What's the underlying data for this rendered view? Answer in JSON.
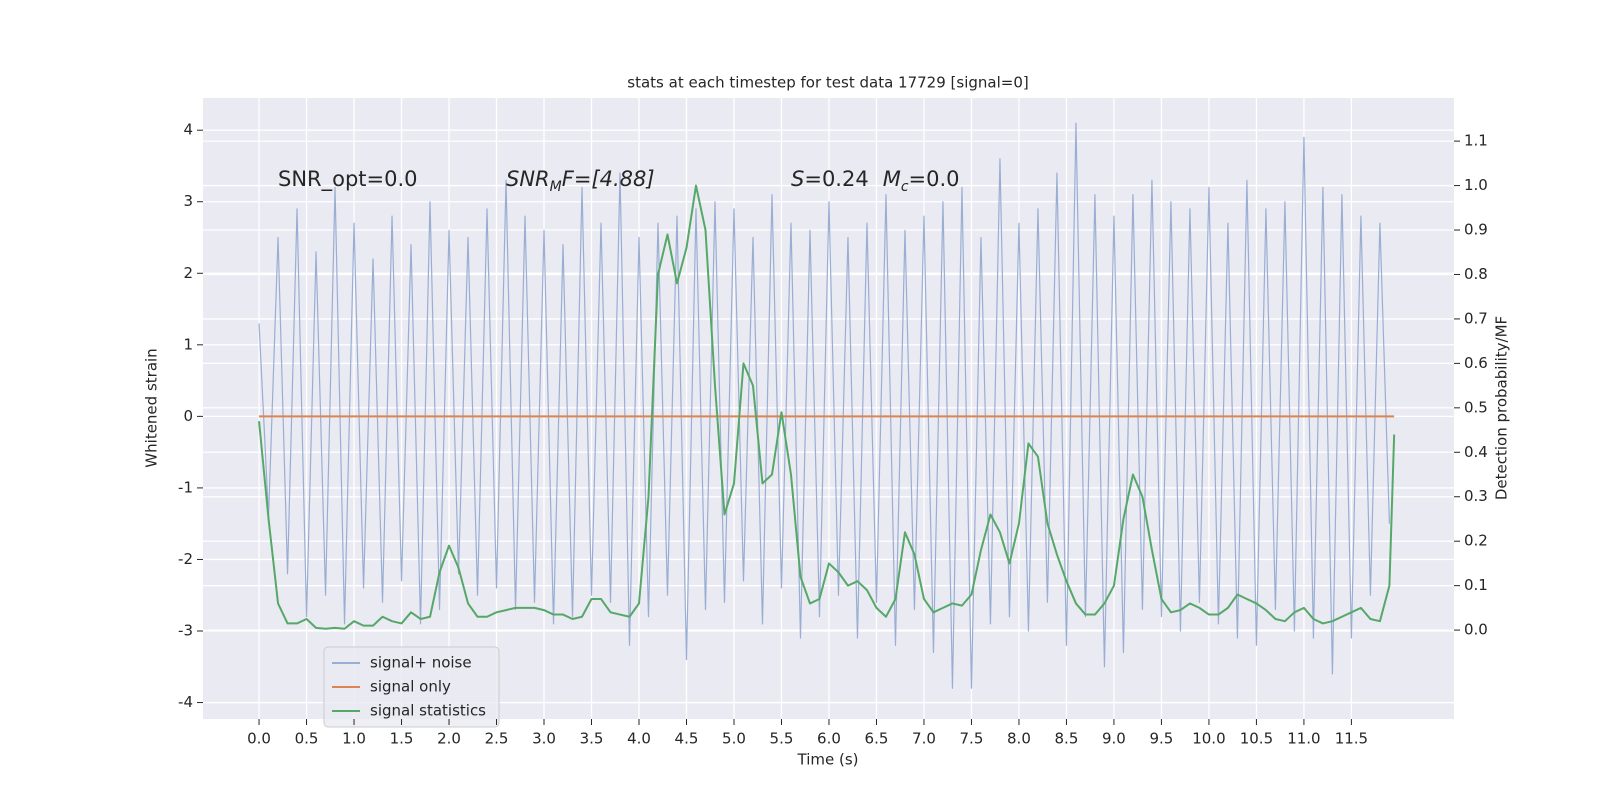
{
  "chart_data": {
    "type": "line",
    "title": "stats at each timestep for test data 17729 [signal=0]",
    "xlabel": "Time (s)",
    "ylabel": "Whitened strain",
    "y2label": "Detection probability/MF",
    "annotations": [
      {
        "text": "SNR_opt=0.0"
      },
      {
        "parts": [
          "SNR",
          "M",
          "F=[4.88]"
        ]
      },
      {
        "parts": [
          "S",
          "=0.24",
          "M",
          "c",
          "=0.0"
        ]
      }
    ],
    "xlim": [
      -0.59,
      12.58
    ],
    "ylim": [
      -4.23,
      4.45
    ],
    "y2lim": [
      -0.2,
      1.197
    ],
    "xticks": [
      {
        "value": 0,
        "label": "0.0"
      },
      0.5,
      {
        "value": 1,
        "label": "1.0"
      },
      1.5,
      {
        "value": 2,
        "label": "2.0"
      },
      2.5,
      {
        "value": 3,
        "label": "3.0"
      },
      3.5,
      {
        "value": 4,
        "label": "4.0"
      },
      4.5,
      {
        "value": 5,
        "label": "5.0"
      },
      5.5,
      {
        "value": 6,
        "label": "6.0"
      },
      6.5,
      {
        "value": 7,
        "label": "7.0"
      },
      7.5,
      {
        "value": 8,
        "label": "8.0"
      },
      8.5,
      {
        "value": 9,
        "label": "9.0"
      },
      9.5,
      {
        "value": 10,
        "label": "10.0"
      },
      10.5,
      {
        "value": 11,
        "label": "11.0"
      },
      11.5
    ],
    "yticks": [
      -4,
      -3,
      -2,
      -1,
      0,
      1,
      2,
      3,
      4
    ],
    "y2ticks": [
      {
        "value": 0,
        "label": "0.0"
      },
      0.1,
      0.2,
      0.3,
      0.4,
      0.5,
      0.6,
      0.7,
      0.8,
      0.9,
      {
        "value": 1,
        "label": "1.0"
      },
      1.1
    ],
    "grid": true,
    "legend": "lower left",
    "series": [
      {
        "name": "signal+ noise",
        "color": "#9aaed3",
        "x": [
          0.0,
          0.1,
          0.2,
          0.3,
          0.4,
          0.5,
          0.6,
          0.7,
          0.8,
          0.9,
          1.0,
          1.1,
          1.2,
          1.3,
          1.4,
          1.5,
          1.6,
          1.7,
          1.8,
          1.9,
          2.0,
          2.1,
          2.2,
          2.3,
          2.4,
          2.5,
          2.6,
          2.7,
          2.8,
          2.9,
          3.0,
          3.1,
          3.2,
          3.3,
          3.4,
          3.5,
          3.6,
          3.7,
          3.8,
          3.9,
          4.0,
          4.1,
          4.2,
          4.3,
          4.4,
          4.5,
          4.6,
          4.7,
          4.8,
          4.9,
          5.0,
          5.1,
          5.2,
          5.3,
          5.4,
          5.5,
          5.6,
          5.7,
          5.8,
          5.9,
          6.0,
          6.1,
          6.2,
          6.3,
          6.4,
          6.5,
          6.6,
          6.7,
          6.8,
          6.9,
          7.0,
          7.1,
          7.2,
          7.3,
          7.4,
          7.5,
          7.6,
          7.7,
          7.8,
          7.9,
          8.0,
          8.1,
          8.2,
          8.3,
          8.4,
          8.5,
          8.6,
          8.7,
          8.8,
          8.9,
          9.0,
          9.1,
          9.2,
          9.3,
          9.4,
          9.5,
          9.6,
          9.7,
          9.8,
          9.9,
          10.0,
          10.1,
          10.2,
          10.3,
          10.4,
          10.5,
          10.6,
          10.7,
          10.8,
          10.9,
          11.0,
          11.1,
          11.2,
          11.3,
          11.4,
          11.5,
          11.6,
          11.7,
          11.8,
          11.9
        ],
        "values": [
          1.3,
          -1.4,
          2.5,
          -2.2,
          2.9,
          -2.8,
          2.3,
          -2.5,
          3.2,
          -2.9,
          2.7,
          -2.4,
          2.2,
          -2.6,
          2.8,
          -2.3,
          2.4,
          -2.9,
          3.0,
          -2.7,
          2.6,
          -2.2,
          2.5,
          -2.5,
          2.9,
          -2.4,
          3.3,
          -2.7,
          2.8,
          -2.6,
          2.6,
          -2.9,
          2.4,
          -2.8,
          3.2,
          -2.5,
          2.7,
          -2.6,
          3.4,
          -3.2,
          2.5,
          -2.8,
          2.7,
          -2.5,
          2.8,
          -3.4,
          2.9,
          -2.7,
          3.0,
          -2.6,
          2.9,
          -2.3,
          2.5,
          -2.9,
          3.1,
          -2.4,
          2.7,
          -3.1,
          2.6,
          -2.8,
          3.0,
          -2.5,
          2.5,
          -3.1,
          2.7,
          -2.6,
          3.1,
          -3.2,
          2.6,
          -2.7,
          2.8,
          -3.3,
          3.0,
          -3.8,
          3.2,
          -3.8,
          2.5,
          -2.9,
          3.6,
          -2.8,
          2.7,
          -3.0,
          2.9,
          -2.6,
          3.4,
          -3.2,
          4.1,
          -2.8,
          3.1,
          -3.5,
          2.8,
          -3.3,
          3.1,
          -2.7,
          3.3,
          -2.8,
          3.0,
          -3.0,
          2.9,
          -2.6,
          3.2,
          -2.9,
          2.7,
          -3.1,
          3.3,
          -3.2,
          2.9,
          -2.7,
          3.0,
          -3.0,
          3.9,
          -3.1,
          3.2,
          -3.6,
          3.1,
          -3.1,
          2.8,
          -2.5,
          2.7,
          -1.5
        ]
      },
      {
        "name": "signal only",
        "color": "#dd8452",
        "x": [
          0.0,
          11.95
        ],
        "values": [
          0,
          0
        ]
      },
      {
        "name": "signal statistics",
        "color": "#55a868",
        "axis": "y2",
        "x": [
          0.0,
          0.1,
          0.2,
          0.3,
          0.4,
          0.5,
          0.6,
          0.7,
          0.8,
          0.9,
          1.0,
          1.1,
          1.2,
          1.3,
          1.4,
          1.5,
          1.6,
          1.7,
          1.8,
          1.9,
          2.0,
          2.1,
          2.2,
          2.3,
          2.4,
          2.5,
          2.6,
          2.7,
          2.8,
          2.9,
          3.0,
          3.1,
          3.2,
          3.3,
          3.4,
          3.5,
          3.6,
          3.7,
          3.8,
          3.9,
          4.0,
          4.1,
          4.2,
          4.3,
          4.4,
          4.5,
          4.6,
          4.7,
          4.8,
          4.9,
          5.0,
          5.1,
          5.2,
          5.3,
          5.4,
          5.5,
          5.6,
          5.7,
          5.8,
          5.9,
          6.0,
          6.1,
          6.2,
          6.3,
          6.4,
          6.5,
          6.6,
          6.7,
          6.8,
          6.9,
          7.0,
          7.1,
          7.2,
          7.3,
          7.4,
          7.5,
          7.6,
          7.7,
          7.8,
          7.9,
          8.0,
          8.1,
          8.2,
          8.3,
          8.4,
          8.5,
          8.6,
          8.7,
          8.8,
          8.9,
          9.0,
          9.1,
          9.2,
          9.3,
          9.4,
          9.5,
          9.6,
          9.7,
          9.8,
          9.9,
          10.0,
          10.1,
          10.2,
          10.3,
          10.4,
          10.5,
          10.6,
          10.7,
          10.8,
          10.9,
          11.0,
          11.1,
          11.2,
          11.3,
          11.4,
          11.5,
          11.6,
          11.7,
          11.8,
          11.9,
          11.95
        ],
        "values": [
          0.47,
          0.25,
          0.06,
          0.015,
          0.015,
          0.025,
          0.005,
          0.003,
          0.005,
          0.003,
          0.02,
          0.01,
          0.01,
          0.03,
          0.02,
          0.015,
          0.04,
          0.025,
          0.03,
          0.13,
          0.19,
          0.14,
          0.06,
          0.03,
          0.03,
          0.04,
          0.045,
          0.05,
          0.05,
          0.05,
          0.045,
          0.035,
          0.035,
          0.025,
          0.03,
          0.07,
          0.07,
          0.04,
          0.035,
          0.03,
          0.06,
          0.3,
          0.8,
          0.89,
          0.78,
          0.86,
          1.0,
          0.9,
          0.55,
          0.26,
          0.33,
          0.6,
          0.55,
          0.33,
          0.35,
          0.49,
          0.35,
          0.12,
          0.06,
          0.07,
          0.15,
          0.13,
          0.1,
          0.11,
          0.09,
          0.05,
          0.03,
          0.07,
          0.22,
          0.17,
          0.07,
          0.04,
          0.05,
          0.06,
          0.055,
          0.08,
          0.18,
          0.26,
          0.22,
          0.15,
          0.24,
          0.42,
          0.39,
          0.24,
          0.17,
          0.11,
          0.06,
          0.035,
          0.035,
          0.06,
          0.1,
          0.25,
          0.35,
          0.3,
          0.18,
          0.07,
          0.04,
          0.045,
          0.06,
          0.05,
          0.035,
          0.035,
          0.05,
          0.08,
          0.07,
          0.06,
          0.045,
          0.025,
          0.02,
          0.04,
          0.05,
          0.025,
          0.015,
          0.02,
          0.03,
          0.04,
          0.05,
          0.025,
          0.02,
          0.1,
          0.44
        ]
      }
    ]
  }
}
